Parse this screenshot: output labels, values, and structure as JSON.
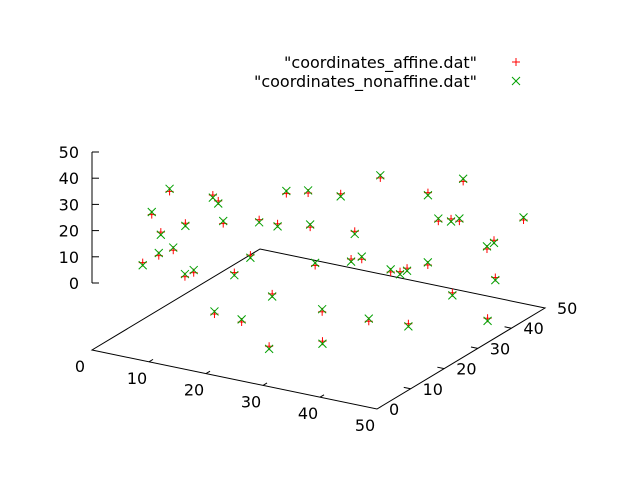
{
  "chart_data": {
    "type": "scatter",
    "projection": "3d",
    "title": "",
    "xlabel": "",
    "ylabel": "",
    "zlabel": "",
    "xlim": [
      0,
      50
    ],
    "ylim": [
      0,
      50
    ],
    "zlim": [
      0,
      50
    ],
    "x_ticks": [
      "0",
      "10",
      "20",
      "30",
      "40",
      "50"
    ],
    "y_ticks": [
      "0",
      "10",
      "20",
      "30",
      "40",
      "50"
    ],
    "z_ticks": [
      "0",
      "10",
      "20",
      "30",
      "40",
      "50"
    ],
    "grid": false,
    "legend_position": "top-right",
    "series": [
      {
        "name": "\"coordinates_affine.dat\"",
        "marker": "plus",
        "color": "#ff0000",
        "points": [
          [
            3,
            10,
            27
          ],
          [
            3,
            18,
            48
          ],
          [
            4,
            11,
            45
          ],
          [
            4,
            21,
            34
          ],
          [
            5,
            12,
            38
          ],
          [
            6,
            14,
            30
          ],
          [
            7,
            8,
            33
          ],
          [
            8,
            24,
            42
          ],
          [
            9,
            15,
            22
          ],
          [
            10,
            19,
            49
          ],
          [
            11,
            9,
            26
          ],
          [
            12,
            22,
            18
          ],
          [
            13,
            17,
            41
          ],
          [
            14,
            26,
            36
          ],
          [
            15,
            11,
            12
          ],
          [
            16,
            20,
            28
          ],
          [
            17,
            29,
            45
          ],
          [
            18,
            14,
            8
          ],
          [
            19,
            23,
            39
          ],
          [
            20,
            31,
            32
          ],
          [
            21,
            18,
            17
          ],
          [
            22,
            27,
            49
          ],
          [
            23,
            35,
            43
          ],
          [
            24,
            12,
            3
          ],
          [
            25,
            24,
            25
          ],
          [
            26,
            33,
            21
          ],
          [
            27,
            40,
            47
          ],
          [
            28,
            21,
            11
          ],
          [
            29,
            29,
            36
          ],
          [
            30,
            38,
            14
          ],
          [
            31,
            16,
            5
          ],
          [
            32,
            26,
            29
          ],
          [
            33,
            44,
            41
          ],
          [
            34,
            34,
            19
          ],
          [
            35,
            23,
            9
          ],
          [
            36,
            42,
            33
          ],
          [
            37,
            31,
            24
          ],
          [
            38,
            46,
            46
          ],
          [
            39,
            28,
            6
          ],
          [
            40,
            39,
            38
          ],
          [
            41,
            48,
            20
          ],
          [
            42,
            36,
            13
          ],
          [
            43,
            27,
            31
          ],
          [
            44,
            45,
            27
          ],
          [
            45,
            33,
            44
          ],
          [
            46,
            42,
            16
          ],
          [
            47,
            38,
            4
          ],
          [
            48,
            47,
            35
          ]
        ]
      },
      {
        "name": "\"coordinates_nonaffine.dat\"",
        "marker": "cross",
        "color": "#00a000",
        "points": [
          [
            3,
            10,
            26
          ],
          [
            3,
            18,
            49
          ],
          [
            4,
            11,
            46
          ],
          [
            4,
            21,
            33
          ],
          [
            5,
            12,
            37
          ],
          [
            6,
            14,
            31
          ],
          [
            7,
            8,
            34
          ],
          [
            8,
            24,
            41
          ],
          [
            9,
            15,
            23
          ],
          [
            10,
            19,
            48
          ],
          [
            11,
            9,
            27
          ],
          [
            12,
            22,
            17
          ],
          [
            13,
            17,
            42
          ],
          [
            14,
            26,
            35
          ],
          [
            15,
            11,
            13
          ],
          [
            16,
            20,
            27
          ],
          [
            17,
            29,
            46
          ],
          [
            18,
            14,
            9
          ],
          [
            19,
            23,
            38
          ],
          [
            20,
            31,
            33
          ],
          [
            21,
            18,
            16
          ],
          [
            22,
            27,
            50
          ],
          [
            23,
            35,
            42
          ],
          [
            24,
            12,
            2
          ],
          [
            25,
            24,
            26
          ],
          [
            26,
            33,
            20
          ],
          [
            27,
            40,
            48
          ],
          [
            28,
            21,
            12
          ],
          [
            29,
            29,
            35
          ],
          [
            30,
            38,
            15
          ],
          [
            31,
            16,
            4
          ],
          [
            32,
            26,
            30
          ],
          [
            33,
            44,
            40
          ],
          [
            34,
            34,
            18
          ],
          [
            35,
            23,
            10
          ],
          [
            36,
            42,
            34
          ],
          [
            37,
            31,
            23
          ],
          [
            38,
            46,
            47
          ],
          [
            39,
            28,
            5
          ],
          [
            40,
            39,
            37
          ],
          [
            41,
            48,
            21
          ],
          [
            42,
            36,
            12
          ],
          [
            43,
            27,
            32
          ],
          [
            44,
            45,
            26
          ],
          [
            45,
            33,
            45
          ],
          [
            46,
            42,
            15
          ],
          [
            47,
            38,
            3
          ],
          [
            48,
            47,
            36
          ]
        ]
      }
    ]
  }
}
